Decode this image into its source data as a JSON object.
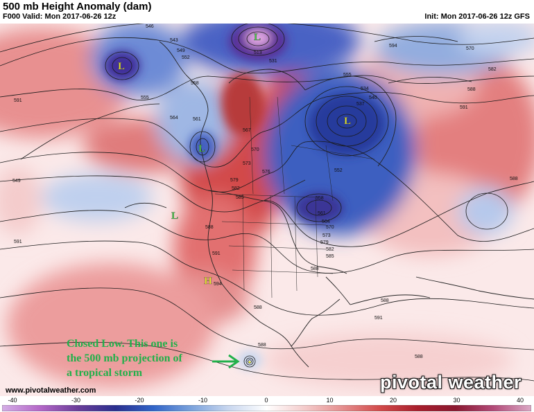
{
  "header": {
    "title": "500 mb Height Anomaly (dam)",
    "valid": "F000 Valid: Mon 2017-06-26 12z",
    "init": "Init: Mon 2017-06-26 12z GFS"
  },
  "footer": {
    "site": "www.pivotalweather.com",
    "brand": "pivotal weather"
  },
  "annotation": {
    "text": "Closed Low. This one is\nthe 500 mb projection of\na tropical storm",
    "color": "#21b04a"
  },
  "colorbar": {
    "ticks": [
      "-40",
      "-30",
      "-20",
      "-10",
      "0",
      "10",
      "20",
      "30",
      "40"
    ],
    "colors": [
      "#d4aee6",
      "#b467c8",
      "#6a3d99",
      "#2a2f8f",
      "#3064c8",
      "#7aa2dc",
      "#c9d7ef",
      "#ffffff",
      "#f4cccc",
      "#e58f8f",
      "#d24a4a",
      "#a81e2c",
      "#8a1830",
      "#b24a78",
      "#dba9c6"
    ]
  },
  "pressure_centers": [
    {
      "symbol": "L",
      "color": "#e8e830"
    },
    {
      "symbol": "L",
      "color": "#4ec94e"
    },
    {
      "symbol": "L",
      "color": "#e8e830"
    },
    {
      "symbol": "L",
      "color": "#4ec94e"
    },
    {
      "symbol": "L",
      "color": "#4ec94e"
    },
    {
      "symbol": "H",
      "color": "#e8e830"
    },
    {
      "symbol": "L",
      "color": "#e8e830"
    }
  ],
  "contour_labels": [
    "546",
    "543",
    "549",
    "552",
    "558",
    "555",
    "564",
    "561",
    "567",
    "570",
    "573",
    "576",
    "579",
    "582",
    "585",
    "588",
    "591",
    "594",
    "513",
    "531",
    "537",
    "540",
    "534",
    "570",
    "582",
    "588",
    "591",
    "594",
    "555",
    "549",
    "588",
    "591",
    "588",
    "588",
    "591",
    "588",
    "588",
    "552",
    "558",
    "561",
    "564",
    "570",
    "573",
    "579",
    "582",
    "585",
    "588",
    "591"
  ]
}
